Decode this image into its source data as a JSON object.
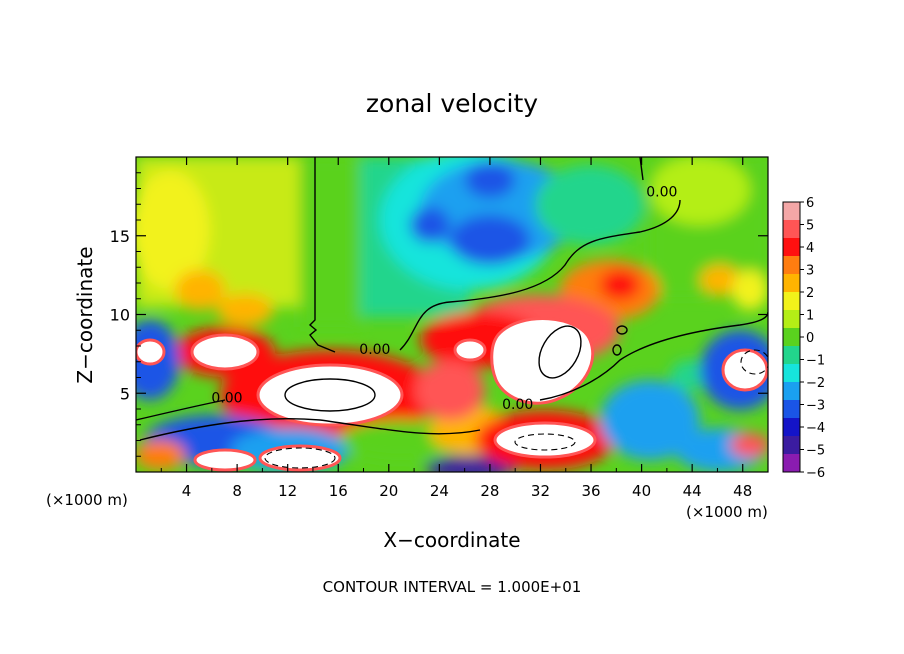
{
  "chart_data": {
    "type": "heatmap",
    "title": "zonal velocity",
    "xlabel": "X−coordinate",
    "ylabel": "Z−coordinate",
    "x_unit_left": "(×1000 m)",
    "x_unit_right": "(×1000 m)",
    "footer": "CONTOUR INTERVAL = 1.000E+01",
    "xlim": [
      0,
      50
    ],
    "ylim": [
      0,
      20
    ],
    "x_ticks": [
      4,
      8,
      12,
      16,
      20,
      24,
      28,
      32,
      36,
      40,
      44,
      48
    ],
    "y_ticks": [
      5,
      10,
      15
    ],
    "colorbar": {
      "ticks": [
        6,
        5,
        4,
        3,
        2,
        1,
        0,
        -1,
        -2,
        -3,
        -4,
        -5,
        -6
      ],
      "colors": [
        "#f4a7a7",
        "#ff5555",
        "#ff1010",
        "#ff7d10",
        "#ffb400",
        "#f2f21a",
        "#b4ee16",
        "#5ad21e",
        "#22d58c",
        "#16e4dc",
        "#1aa0f0",
        "#1a55e6",
        "#1414c8",
        "#3b1ca0",
        "#8a1cb0"
      ]
    },
    "contour_labels": [
      {
        "text": "0.00",
        "x": 18.9,
        "z": 7.5
      },
      {
        "text": "0.00",
        "x": 7.2,
        "z": 4.4
      },
      {
        "text": "0.00",
        "x": 30.2,
        "z": 4.0
      },
      {
        "text": "0.00",
        "x": 41.6,
        "z": 17.5
      }
    ]
  }
}
